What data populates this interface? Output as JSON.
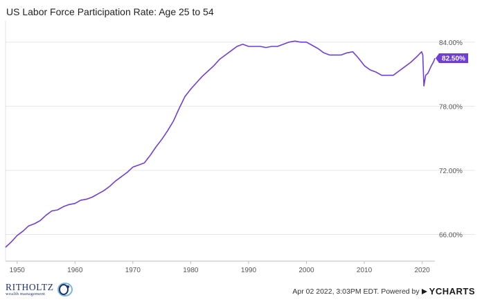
{
  "chart_title": "US Labor Force Participation Rate: Age 25 to 54",
  "footer": {
    "source_text": "Apr 02 2022, 3:03PM EDT. Powered by",
    "provider": "YCHARTS"
  },
  "brand": {
    "name": "RITHOLTZ",
    "tagline": "wealth management",
    "logo_colors": [
      "#23326b",
      "#7bb7d8"
    ]
  },
  "colors": {
    "line": "#6f3fd3",
    "last_value_badge": "#6f3fd3",
    "grid": "#e6e6e6",
    "axis_text": "#555555"
  },
  "chart_data": {
    "type": "line",
    "title": "US Labor Force Participation Rate: Age 25 to 54",
    "xlabel": "",
    "ylabel": "",
    "x_range": [
      1948,
      2022.2
    ],
    "x_ticks": [
      "1950",
      "1960",
      "1970",
      "1980",
      "1990",
      "2000",
      "2010",
      "2020"
    ],
    "ylim": [
      63.5,
      86
    ],
    "y_ticks": [
      "66.00%",
      "72.00%",
      "78.00%",
      "84.00%"
    ],
    "y_tick_values": [
      66,
      72,
      78,
      84
    ],
    "grid": "horizontal",
    "last_value_label": "82.50%",
    "series": [
      {
        "x": [
          1948.0,
          1949.0,
          1950.0,
          1951.0,
          1952.0,
          1953.0,
          1954.0,
          1955.0,
          1956.0,
          1957.0,
          1958.0,
          1959.0,
          1960.0,
          1961.0,
          1962.0,
          1963.0,
          1964.0,
          1965.0,
          1966.0,
          1967.0,
          1968.0,
          1969.0,
          1970.0,
          1971.0,
          1972.0,
          1973.0,
          1974.0,
          1975.0,
          1976.0,
          1977.0,
          1978.0,
          1979.0,
          1980.0,
          1981.0,
          1982.0,
          1983.0,
          1984.0,
          1985.0,
          1986.0,
          1987.0,
          1988.0,
          1989.0,
          1990.0,
          1991.0,
          1992.0,
          1993.0,
          1994.0,
          1995.0,
          1996.0,
          1997.0,
          1998.0,
          1999.0,
          2000.0,
          2001.0,
          2002.0,
          2003.0,
          2004.0,
          2005.0,
          2006.0,
          2007.0,
          2008.0,
          2009.0,
          2010.0,
          2011.0,
          2012.0,
          2013.0,
          2014.0,
          2015.0,
          2016.0,
          2017.0,
          2018.0,
          2019.0,
          2019.9,
          2020.1,
          2020.3,
          2020.6,
          2021.0,
          2021.5,
          2022.0,
          2022.2
        ],
        "values": [
          64.8,
          65.3,
          65.9,
          66.3,
          66.8,
          67.0,
          67.3,
          67.8,
          68.2,
          68.3,
          68.6,
          68.8,
          68.9,
          69.2,
          69.3,
          69.5,
          69.8,
          70.1,
          70.5,
          71.0,
          71.4,
          71.8,
          72.3,
          72.5,
          72.7,
          73.4,
          74.2,
          74.9,
          75.7,
          76.6,
          77.8,
          78.9,
          79.6,
          80.2,
          80.8,
          81.3,
          81.8,
          82.4,
          82.8,
          83.2,
          83.6,
          83.8,
          83.6,
          83.6,
          83.6,
          83.5,
          83.6,
          83.6,
          83.8,
          84.0,
          84.1,
          84.0,
          84.0,
          83.7,
          83.4,
          83.0,
          82.8,
          82.8,
          82.8,
          83.0,
          83.1,
          82.5,
          81.8,
          81.4,
          81.2,
          80.9,
          80.9,
          80.9,
          81.3,
          81.7,
          82.1,
          82.6,
          83.1,
          82.8,
          79.9,
          80.9,
          81.1,
          81.7,
          82.2,
          82.5
        ]
      }
    ]
  }
}
